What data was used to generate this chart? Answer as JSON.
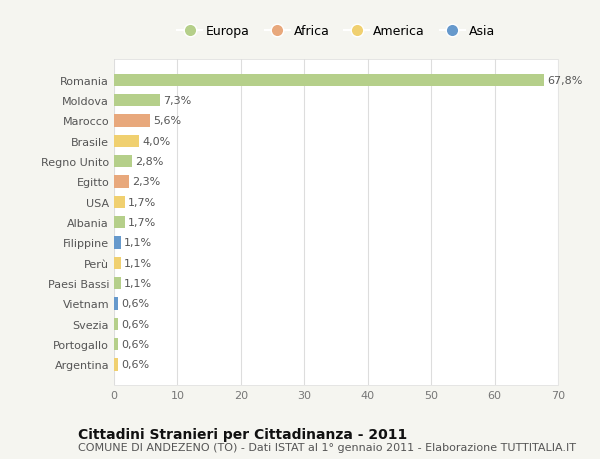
{
  "countries": [
    "Romania",
    "Moldova",
    "Marocco",
    "Brasile",
    "Regno Unito",
    "Egitto",
    "USA",
    "Albania",
    "Filippine",
    "Perù",
    "Paesi Bassi",
    "Vietnam",
    "Svezia",
    "Portogallo",
    "Argentina"
  ],
  "values": [
    67.8,
    7.3,
    5.6,
    4.0,
    2.8,
    2.3,
    1.7,
    1.7,
    1.1,
    1.1,
    1.1,
    0.6,
    0.6,
    0.6,
    0.6
  ],
  "labels": [
    "67,8%",
    "7,3%",
    "5,6%",
    "4,0%",
    "2,8%",
    "2,3%",
    "1,7%",
    "1,7%",
    "1,1%",
    "1,1%",
    "1,1%",
    "0,6%",
    "0,6%",
    "0,6%",
    "0,6%"
  ],
  "continents": [
    "Europa",
    "Europa",
    "Africa",
    "America",
    "Europa",
    "Africa",
    "America",
    "Europa",
    "Asia",
    "America",
    "Europa",
    "Asia",
    "Europa",
    "Europa",
    "America"
  ],
  "colors": {
    "Europa": "#b5cf8a",
    "Africa": "#e8a87c",
    "America": "#f0d070",
    "Asia": "#6699cc"
  },
  "title": "Cittadini Stranieri per Cittadinanza - 2011",
  "subtitle": "COMUNE DI ANDEZENO (TO) - Dati ISTAT al 1° gennaio 2011 - Elaborazione TUTTITALIA.IT",
  "xlim": [
    0,
    70
  ],
  "xticks": [
    0,
    10,
    20,
    30,
    40,
    50,
    60,
    70
  ],
  "background_color": "#f5f5f0",
  "plot_bg_color": "#ffffff",
  "grid_color": "#dddddd",
  "bar_height": 0.6,
  "title_fontsize": 10,
  "subtitle_fontsize": 8,
  "label_fontsize": 8,
  "tick_fontsize": 8,
  "legend_fontsize": 9
}
